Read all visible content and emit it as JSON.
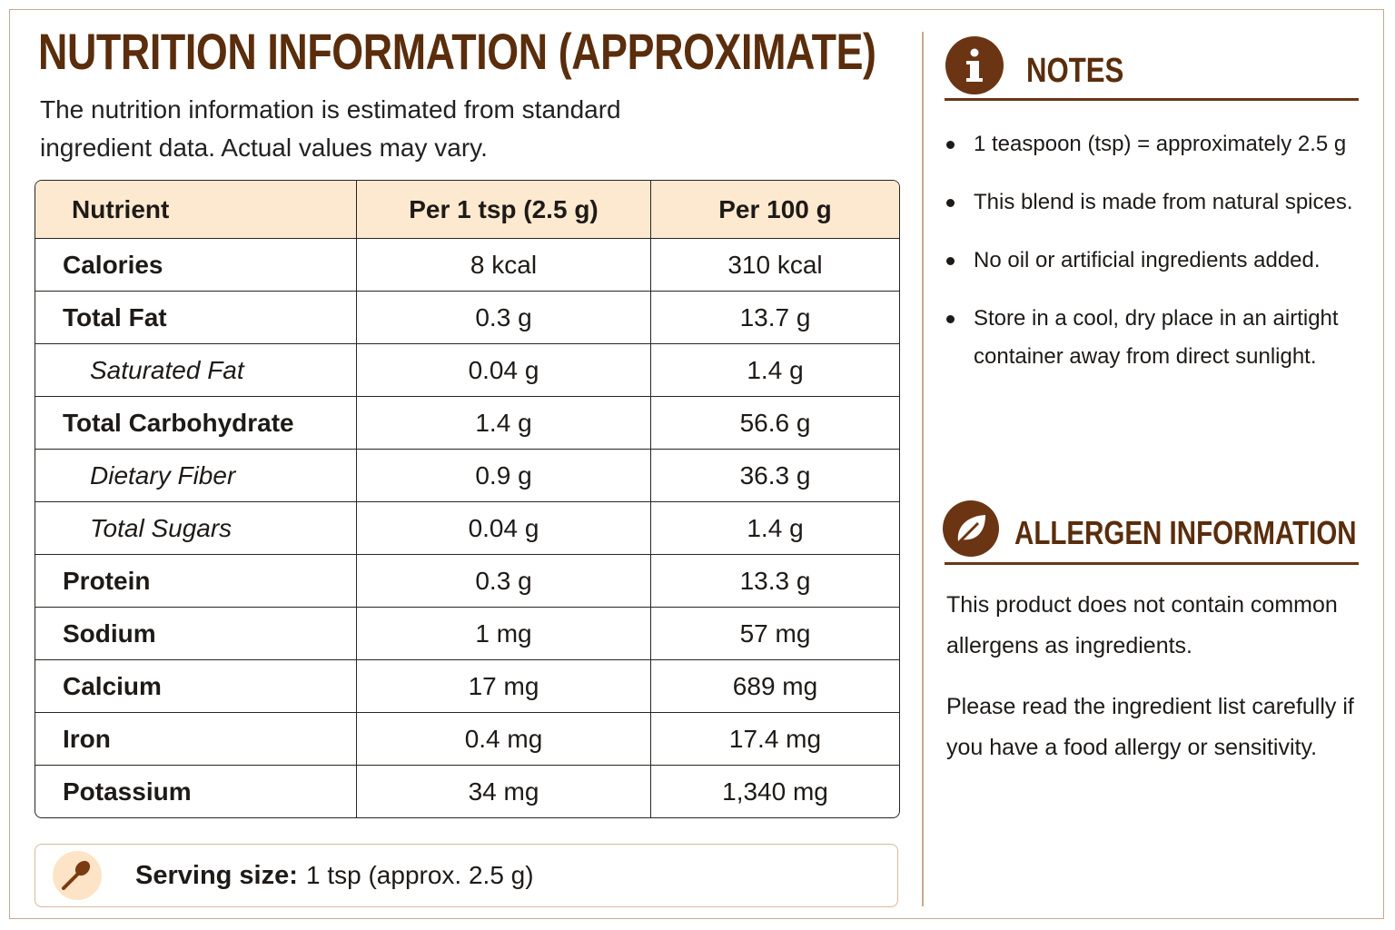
{
  "header": {
    "title": "NUTRITION INFORMATION (APPROXIMATE)",
    "intro": "The nutrition information is estimated from standard ingredient data. Actual values may vary."
  },
  "table": {
    "headers": [
      "Nutrient",
      "Per 1 tsp (2.5 g)",
      "Per 100 g"
    ],
    "rows": [
      [
        "Calories",
        "8 kcal",
        "310 kcal"
      ],
      [
        "Total Fat",
        "0.3 g",
        "13.7 g"
      ],
      [
        "Saturated Fat",
        "0.04 g",
        "1.4 g"
      ],
      [
        "Total Carbohydrate",
        "1.4 g",
        "56.6 g"
      ],
      [
        "Dietary Fiber",
        "0.9 g",
        "36.3 g"
      ],
      [
        "Total Sugars",
        "0.04 g",
        "1.4 g"
      ],
      [
        "Protein",
        "0.3 g",
        "13.3 g"
      ],
      [
        "Sodium",
        "1 mg",
        "57 mg"
      ],
      [
        "Calcium",
        "17 mg",
        "689 mg"
      ],
      [
        "Iron",
        "0.4 mg",
        "17.4 mg"
      ],
      [
        "Potassium",
        "34 mg",
        "1,340 mg"
      ]
    ]
  },
  "serving": {
    "label": "Serving size:",
    "value": "1 tsp (approx. 2.5 g)"
  },
  "notes": {
    "title": "NOTES",
    "items": [
      "1 teaspoon (tsp) = approximately 2.5 g",
      "This blend is made from natural spices.",
      "No oil or artificial ingredients added.",
      "Store in a cool, dry place in an airtight container away from direct sunlight."
    ]
  },
  "allergen": {
    "title": "ALLERGEN INFORMATION",
    "paragraphs": [
      "This product does not contain common allergens as ingredients.",
      "Please read the ingredient list carefully if you have a food allergy or sensitivity."
    ]
  }
}
